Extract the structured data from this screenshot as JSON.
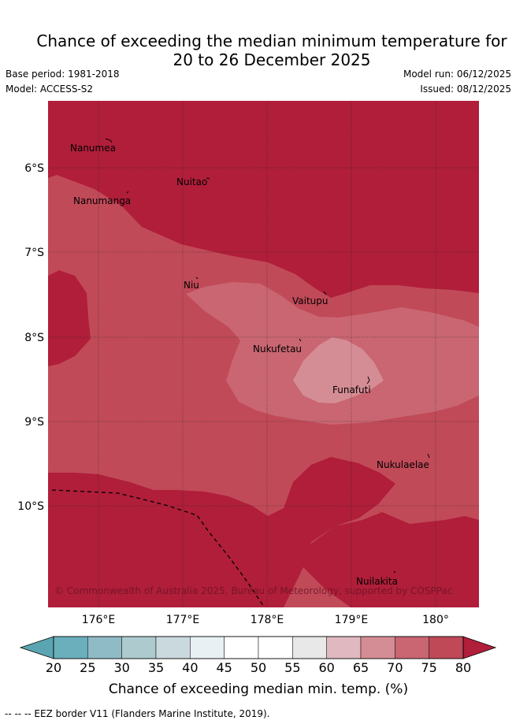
{
  "header": {
    "title_line1": "Chance of exceeding the median minimum temperature for",
    "title_line2": "20 to 26 December 2025",
    "base_period": "Base period: 1981-2018",
    "model": "Model: ACCESS-S2",
    "model_run": "Model run: 06/12/2025",
    "issued": "Issued: 08/12/2025"
  },
  "map": {
    "lat_labels": [
      "6°S",
      "7°S",
      "8°S",
      "9°S",
      "10°S"
    ],
    "lon_labels": [
      "176°E",
      "177°E",
      "178°E",
      "179°E",
      "180°"
    ],
    "places": [
      "Nanumea",
      "Nuitao",
      "Nanumanga",
      "Niu",
      "Vaitupu",
      "Nukufetau",
      "Funafuti",
      "Nukulaelae",
      "Nuilakita"
    ],
    "copyright": "© Commonwealth of Australia 2025, Bureau of Meteorology, supported by COSPPac"
  },
  "colorbar": {
    "ticks": [
      "20",
      "25",
      "30",
      "35",
      "40",
      "45",
      "50",
      "55",
      "60",
      "65",
      "70",
      "75",
      "80"
    ],
    "colors": [
      "#6aafbb",
      "#8fbbc6",
      "#adcacf",
      "#cad9de",
      "#e8f0f3",
      "#ffffff",
      "#ffffff",
      "#e8e8e8",
      "#e0b8bf",
      "#d58d95",
      "#c96672",
      "#bf4957"
    ],
    "under_color": "#5aa5b1",
    "over_color": "#b01e3a",
    "label": "Chance of exceeding median min. temp. (%)"
  },
  "footer": {
    "eez_legend": "--  --  -- EEZ border V11 (Flanders Marine Institute, 2019)."
  }
}
